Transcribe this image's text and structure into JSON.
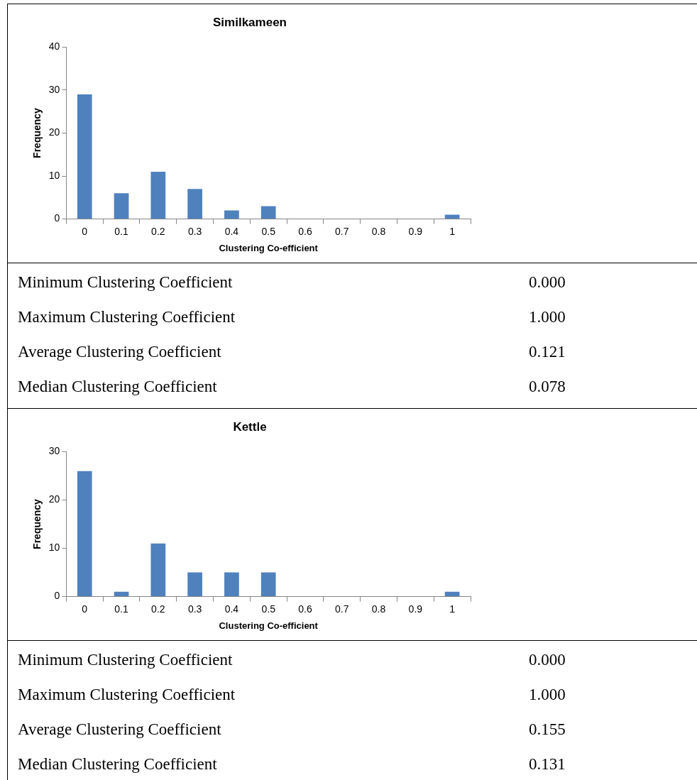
{
  "chart_data": [
    {
      "type": "bar",
      "title": "Similkameen",
      "xlabel": "Clustering Co-efficient",
      "ylabel": "Frequency",
      "categories": [
        "0",
        "0.1",
        "0.2",
        "0.3",
        "0.4",
        "0.5",
        "0.6",
        "0.7",
        "0.8",
        "0.9",
        "1"
      ],
      "values": [
        29,
        6,
        11,
        7,
        2,
        3,
        0,
        0,
        0,
        0,
        1
      ],
      "color": "#4f81bd",
      "ylim": [
        0,
        40
      ],
      "yticks": [
        0,
        10,
        20,
        30,
        40
      ],
      "grid": false
    },
    {
      "type": "other",
      "annotations": [
        "Minimum Clustering Coefficient",
        "0.000",
        "Maximum Clustering Coefficient",
        "1.000",
        "Average Clustering Coefficient",
        "0.121",
        "Median Clustering Coefficient",
        "0.078"
      ]
    },
    {
      "type": "bar",
      "title": "Kettle",
      "xlabel": "Clustering Co-efficient",
      "ylabel": "Frequency",
      "categories": [
        "0",
        "0.1",
        "0.2",
        "0.3",
        "0.4",
        "0.5",
        "0.6",
        "0.7",
        "0.8",
        "0.9",
        "1"
      ],
      "values": [
        26,
        1,
        11,
        5,
        5,
        5,
        0,
        0,
        0,
        0,
        1
      ],
      "color": "#4f81bd",
      "ylim": [
        0,
        30
      ],
      "yticks": [
        0,
        10,
        20,
        30
      ],
      "grid": false
    },
    {
      "type": "other",
      "annotations": [
        "Minimum Clustering Coefficient",
        "0.000",
        "Maximum Clustering Coefficient",
        "1.000",
        "Average Clustering Coefficient",
        "0.155",
        "Median Clustering Coefficient",
        "0.131"
      ]
    }
  ]
}
